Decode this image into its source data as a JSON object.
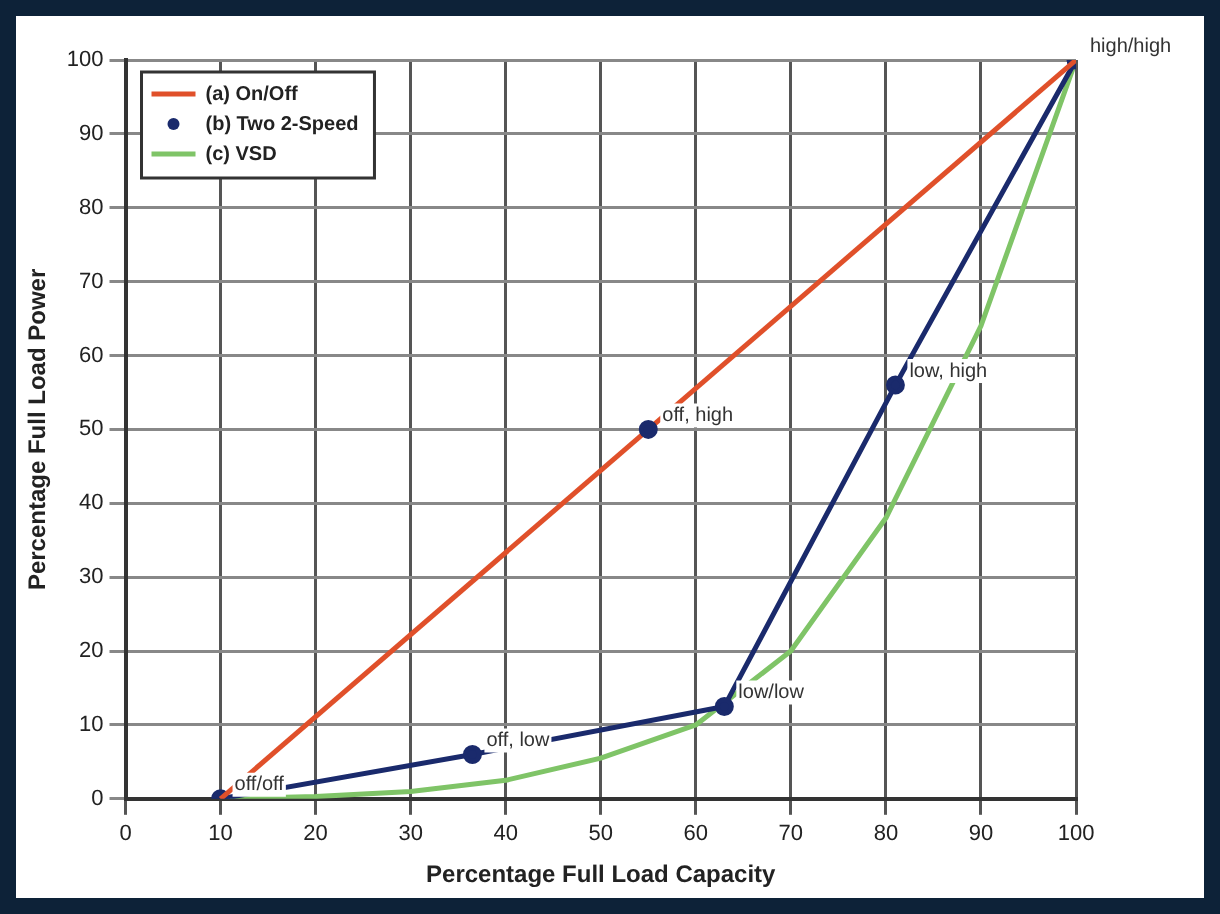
{
  "chart_data": {
    "type": "line",
    "xlabel": "Percentage Full Load Capacity",
    "ylabel": "Percentage Full Load Power",
    "xlim": [
      0,
      100
    ],
    "xticks": [
      0,
      10,
      20,
      30,
      40,
      50,
      60,
      70,
      80,
      90,
      100
    ],
    "ylim": [
      0,
      100
    ],
    "yticks": [
      0,
      10,
      20,
      30,
      40,
      50,
      60,
      70,
      80,
      90,
      100
    ],
    "grid": true,
    "legend": "top left",
    "line_style": "solid",
    "series": [
      {
        "name": "(a) On/Off",
        "color": "#e0502a",
        "marker": "none",
        "x": [
          10,
          100
        ],
        "values": [
          0,
          100
        ]
      },
      {
        "name": "(b) Two 2-Speed",
        "color": "#1a2a6c",
        "marker": "circle",
        "x": [
          10,
          36.5,
          63,
          81,
          100
        ],
        "values": [
          0,
          6,
          12.5,
          56,
          100
        ]
      },
      {
        "name": "(c) VSD",
        "color": "#7fc467",
        "marker": "none",
        "x": [
          10,
          20,
          30,
          40,
          50,
          60,
          70,
          80,
          90,
          100
        ],
        "values": [
          0,
          0.3,
          1,
          2.5,
          5.5,
          10,
          20,
          38,
          64,
          100
        ]
      },
      {
        "type": "scatter",
        "color": "#1a2a6c",
        "marker": "circle",
        "x": [
          55
        ],
        "values": [
          50
        ]
      }
    ],
    "annotations": [
      {
        "text": "off/off",
        "x": 10,
        "y": 0
      },
      {
        "text": "off, low",
        "x": 36.5,
        "y": 6
      },
      {
        "text": "low/low",
        "x": 63,
        "y": 12.5
      },
      {
        "text": "off, high",
        "x": 55,
        "y": 50
      },
      {
        "text": "low, high",
        "x": 81,
        "y": 56
      },
      {
        "text": "high/high",
        "x": 100,
        "y": 100
      }
    ]
  }
}
